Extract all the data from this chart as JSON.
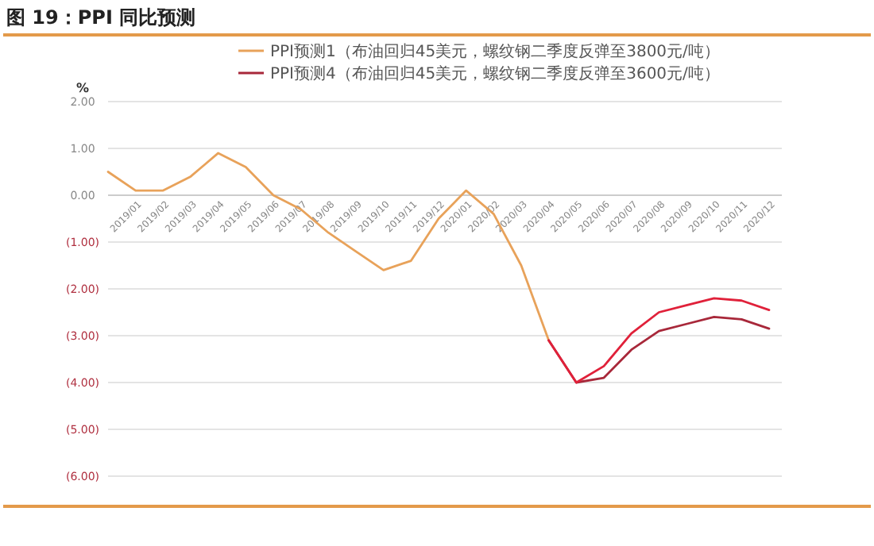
{
  "chart_data": {
    "type": "line",
    "title": "图 19：PPI 同比预测",
    "ylabel": "%",
    "categories": [
      null,
      "2019/01",
      "2019/02",
      "2019/03",
      "2019/04",
      "2019/05",
      "2019/06",
      "2019/07",
      "2019/08",
      "2019/09",
      "2019/10",
      "2019/11",
      "2019/12",
      "2020/01",
      "2020/02",
      "2020/03",
      "2020/04",
      "2020/05",
      "2020/06",
      "2020/07",
      "2020/08",
      "2020/09",
      "2020/10",
      "2020/11",
      "2020/12"
    ],
    "series": [
      {
        "name": "PPI预测1（布油回归45美元，螺纹钢二季度反弹至3800元/吨）",
        "color": "#e8a25a",
        "values": [
          0.5,
          0.1,
          0.1,
          0.4,
          0.9,
          0.6,
          0.0,
          -0.3,
          -0.8,
          -1.2,
          -1.6,
          -1.4,
          -0.5,
          0.1,
          -0.4,
          -1.5,
          -3.1,
          null,
          null,
          null,
          null,
          null,
          null,
          null,
          null
        ]
      },
      {
        "name": "PPI预测4（布油回归45美元，螺纹钢二季度反弹至3600元/吨）",
        "color": "#a8283a",
        "values": [
          null,
          null,
          null,
          null,
          null,
          null,
          null,
          null,
          null,
          null,
          null,
          null,
          null,
          null,
          null,
          null,
          -3.1,
          -4.0,
          -3.9,
          -3.3,
          -2.9,
          -2.75,
          -2.6,
          -2.65,
          -2.85
        ]
      },
      {
        "color": "#e0213a",
        "values": [
          null,
          null,
          null,
          null,
          null,
          null,
          null,
          null,
          null,
          null,
          null,
          null,
          null,
          null,
          null,
          null,
          -3.1,
          -4.0,
          -3.65,
          -2.95,
          -2.5,
          -2.35,
          -2.2,
          -2.25,
          -2.45
        ]
      }
    ],
    "ylim": [
      -6,
      2
    ],
    "yticks": [
      {
        "value": 2,
        "label": "2.00"
      },
      {
        "value": 1,
        "label": "1.00"
      },
      {
        "value": 0,
        "label": "0.00"
      },
      {
        "value": -1,
        "label": "(1.00)"
      },
      {
        "value": -2,
        "label": "(2.00)"
      },
      {
        "value": -3,
        "label": "(3.00)"
      },
      {
        "value": -4,
        "label": "(4.00)"
      },
      {
        "value": -5,
        "label": "(5.00)"
      },
      {
        "value": -6,
        "label": "(6.00)"
      }
    ],
    "grid": "y",
    "legend": "top",
    "marker": "none",
    "line_style": "solid"
  }
}
